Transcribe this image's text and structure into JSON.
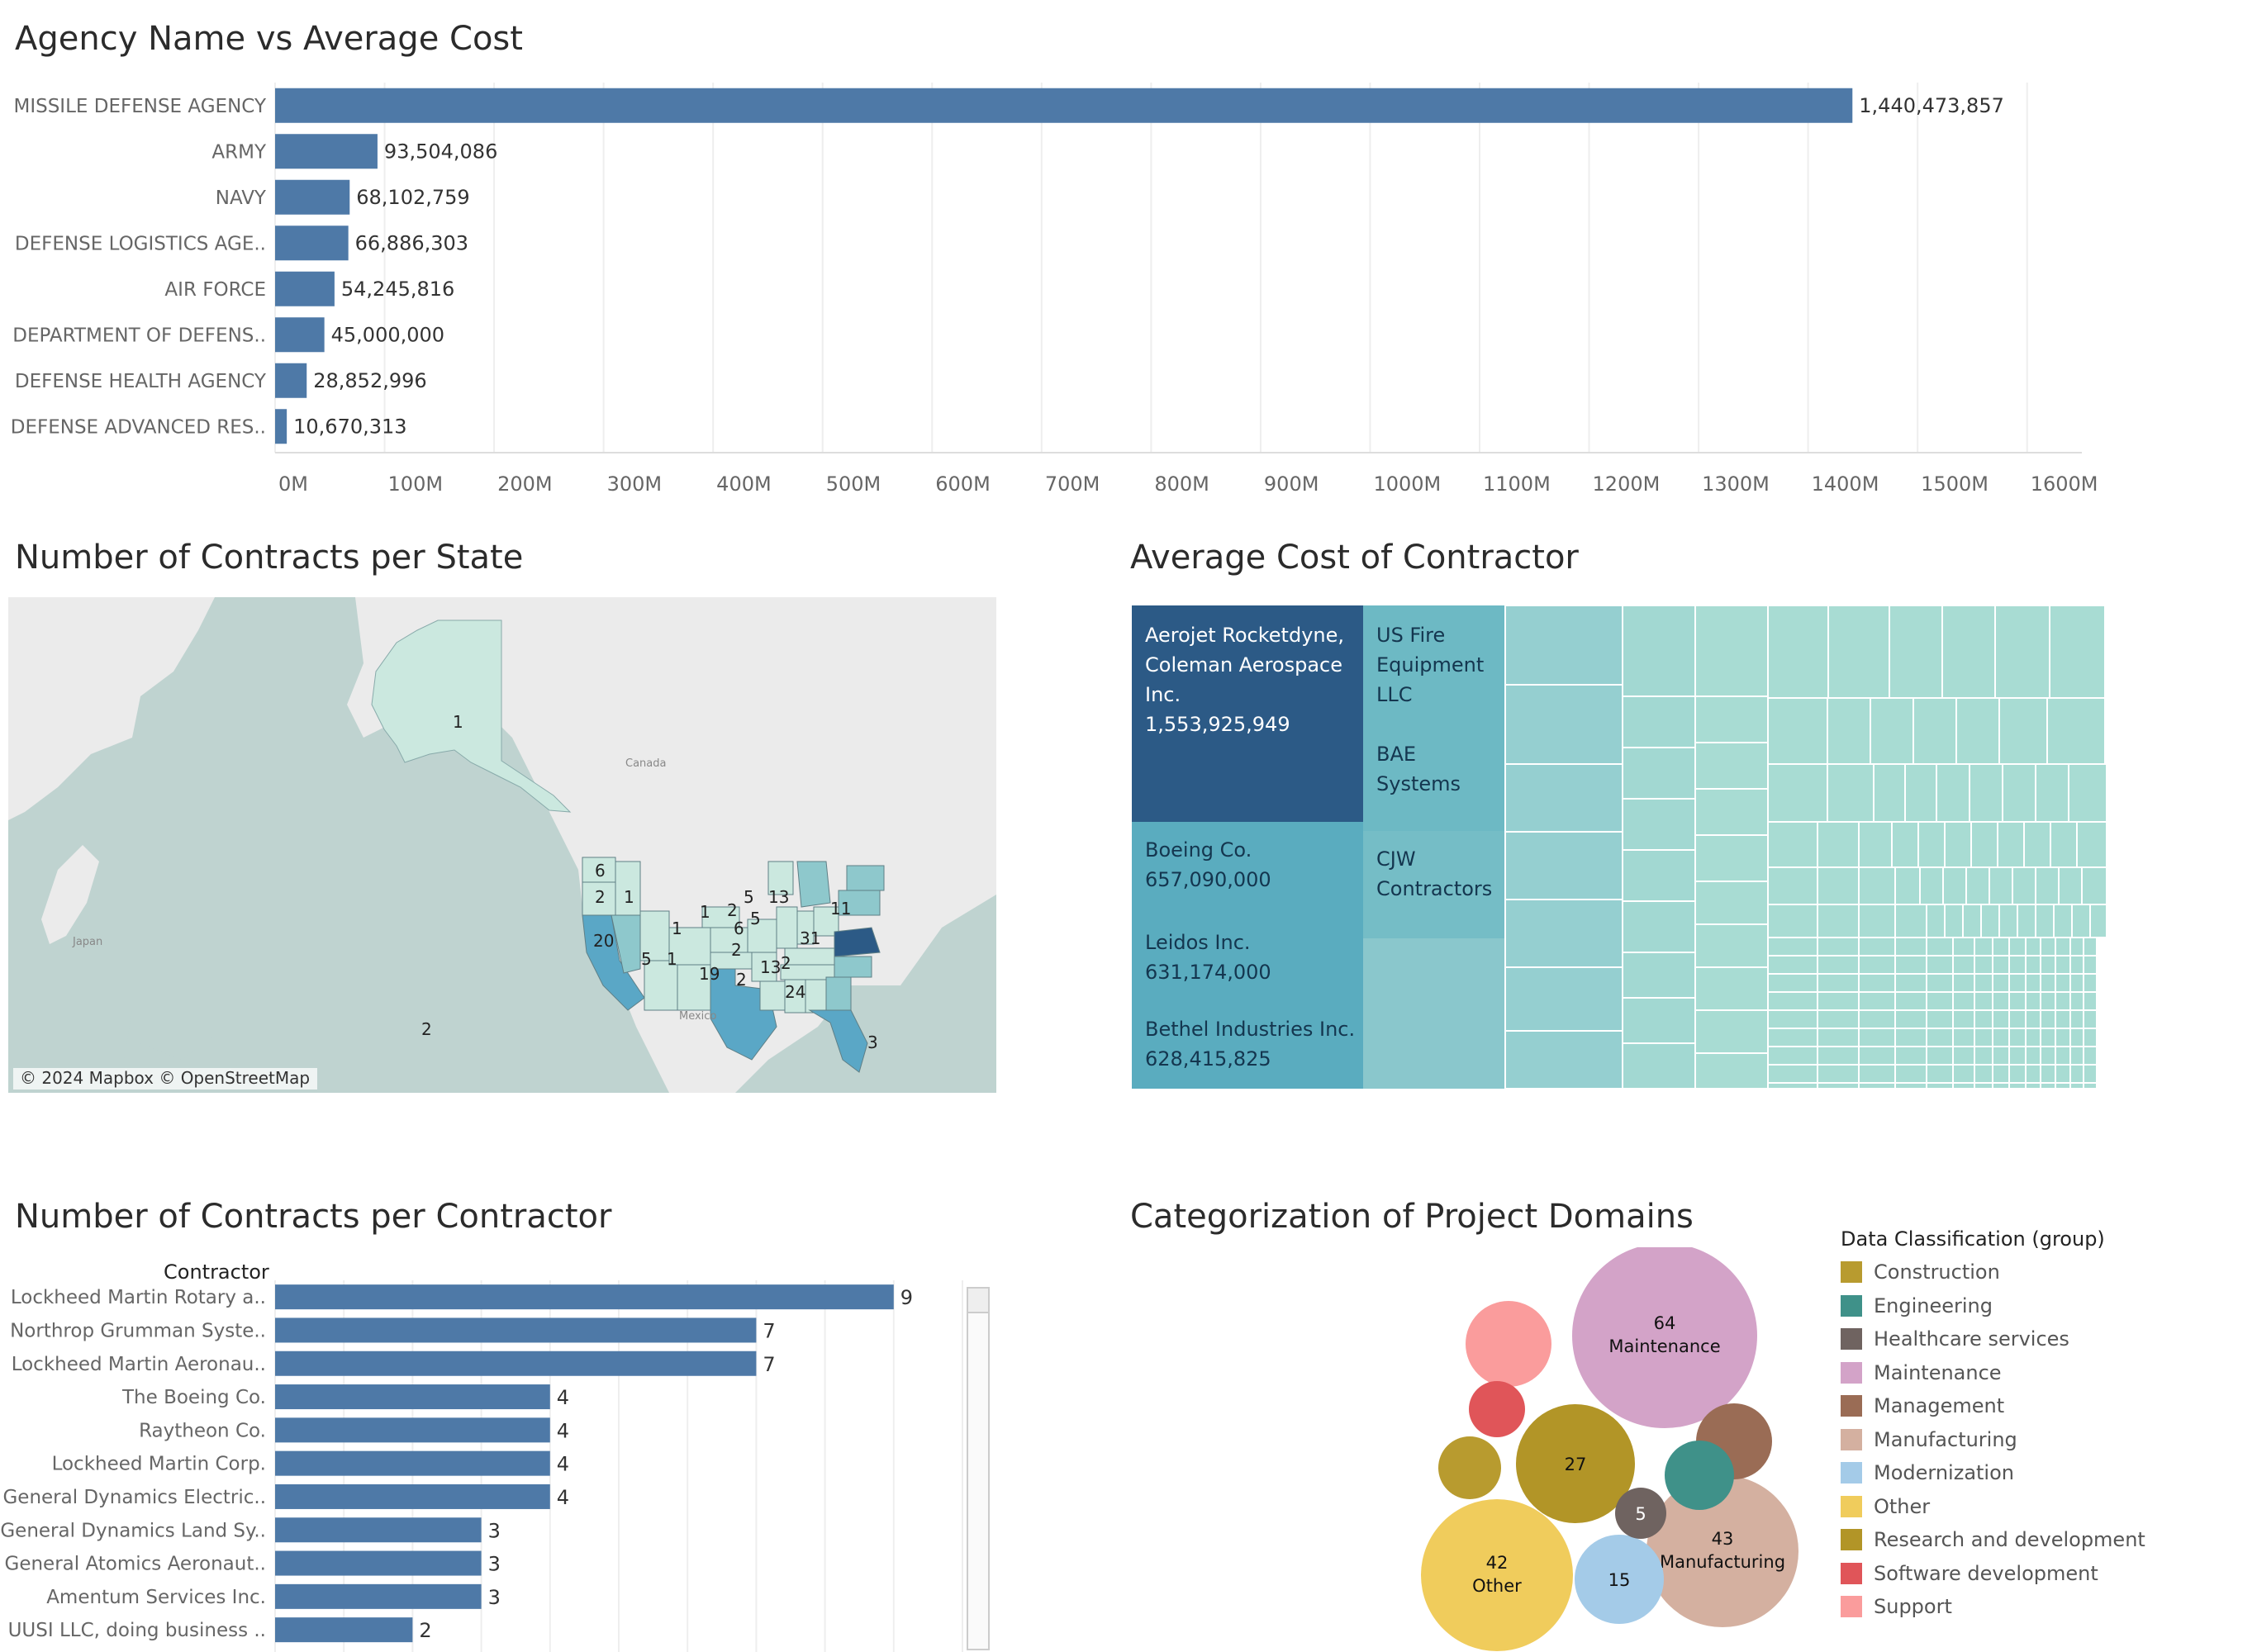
{
  "dashboard": {
    "agency_title": "Agency Name vs Average Cost",
    "state_title": "Number of Contracts per State",
    "contractor_cost_title": "Average Cost of Contractor",
    "contractor_count_title": "Number of Contracts per Contractor",
    "domains_title": "Categorization of Project Domains"
  },
  "colors": {
    "bar": "#4e79a7",
    "treemap_dark": "#2c5a86",
    "treemap_mid": "#5aacbf",
    "treemap_light": "#8ac7cc",
    "treemap_pale": "#a8dcd3"
  },
  "map": {
    "attribution": "© 2024 Mapbox © OpenStreetMap",
    "places": [
      "Canada",
      "Japan",
      "Mexico"
    ],
    "labels": [
      "1",
      "6",
      "2",
      "1",
      "20",
      "5",
      "1",
      "1",
      "1",
      "2",
      "5",
      "2",
      "6",
      "5",
      "13",
      "11",
      "31",
      "19",
      "2",
      "2",
      "13",
      "24",
      "2",
      "3"
    ]
  },
  "treemap": {
    "cells": [
      {
        "lines": [
          "Aerojet Rocketdyne,",
          "Coleman Aerospace",
          "Inc.",
          "1,553,925,949"
        ]
      },
      {
        "lines": [
          "Boeing Co.",
          "657,090,000"
        ]
      },
      {
        "lines": [
          "Leidos Inc.",
          "631,174,000"
        ]
      },
      {
        "lines": [
          "Bethel Industries Inc.",
          "628,415,825"
        ]
      },
      {
        "lines": [
          "US Fire",
          "Equipment",
          "LLC"
        ]
      },
      {
        "lines": [
          "BAE",
          "Systems"
        ]
      },
      {
        "lines": [
          "CJW",
          "Contractors"
        ]
      }
    ]
  },
  "contractor_header": "Contractor",
  "legend": {
    "title": "Data Classification (group)",
    "items": [
      {
        "label": "Construction",
        "color": "#b89b2f"
      },
      {
        "label": "Engineering",
        "color": "#3f9189"
      },
      {
        "label": "Healthcare services",
        "color": "#6f6360"
      },
      {
        "label": "Maintenance",
        "color": "#d3a3c8"
      },
      {
        "label": "Management",
        "color": "#9a6c55"
      },
      {
        "label": "Manufacturing",
        "color": "#d4b0a0"
      },
      {
        "label": "Modernization",
        "color": "#a4cbe8"
      },
      {
        "label": "Other",
        "color": "#f0cc5c"
      },
      {
        "label": "Research and development",
        "color": "#b29527"
      },
      {
        "label": "Software development",
        "color": "#e05559"
      },
      {
        "label": "Support",
        "color": "#fa9c9c"
      }
    ]
  },
  "chart_data": [
    {
      "type": "bar",
      "title": "Agency Name vs Average Cost",
      "orientation": "horizontal",
      "categories": [
        "MISSILE DEFENSE AGENCY",
        "ARMY",
        "NAVY",
        "DEFENSE LOGISTICS AGE..",
        "AIR FORCE",
        "DEPARTMENT OF DEFENS..",
        "DEFENSE HEALTH AGENCY",
        "DEFENSE ADVANCED RES.."
      ],
      "values": [
        1440473857,
        93504086,
        68102759,
        66886303,
        54245816,
        45000000,
        28852996,
        10670313
      ],
      "value_labels": [
        "1,440,473,857",
        "93,504,086",
        "68,102,759",
        "66,886,303",
        "54,245,816",
        "45,000,000",
        "28,852,996",
        "10,670,313"
      ],
      "xlim": [
        0,
        1650000000
      ],
      "tick_labels": [
        "0M",
        "100M",
        "200M",
        "300M",
        "400M",
        "500M",
        "600M",
        "700M",
        "800M",
        "900M",
        "1000M",
        "1100M",
        "1200M",
        "1300M",
        "1400M",
        "1500M",
        "1600M"
      ],
      "grid": true
    },
    {
      "type": "bar",
      "title": "Number of Contracts per Contractor",
      "orientation": "horizontal",
      "categories": [
        "Lockheed Martin Rotary a..",
        "Northrop Grumman Syste..",
        "Lockheed Martin Aeronau..",
        "The Boeing Co.",
        "Raytheon Co.",
        "Lockheed Martin Corp.",
        "General Dynamics Electric..",
        "General Dynamics Land Sy..",
        "General Atomics Aeronaut..",
        "Amentum Services Inc.",
        "UUSI LLC, doing business .."
      ],
      "values": [
        9,
        7,
        7,
        4,
        4,
        4,
        4,
        3,
        3,
        3,
        2
      ],
      "xlim": [
        0,
        10
      ],
      "grid": true
    },
    {
      "type": "bubble",
      "title": "Categorization of Project Domains",
      "bubbles": [
        {
          "category": "Maintenance",
          "value": 64,
          "label": "Maintenance",
          "color": "#d3a3c8"
        },
        {
          "category": "Manufacturing",
          "value": 43,
          "label": "Manufacturing",
          "color": "#d4b0a0"
        },
        {
          "category": "Other",
          "value": 42,
          "label": "Other",
          "color": "#f0cc5c"
        },
        {
          "category": "Research and development",
          "value": 27,
          "label": "",
          "color": "#b29527"
        },
        {
          "category": "Modernization",
          "value": 15,
          "label": "",
          "color": "#a4cbe8"
        },
        {
          "category": "Healthcare services",
          "value": 5,
          "label": "",
          "color": "#6f6360"
        },
        {
          "category": "Support",
          "value": null,
          "label": "",
          "color": "#fa9c9c"
        },
        {
          "category": "Management",
          "value": null,
          "label": "",
          "color": "#9a6c55"
        },
        {
          "category": "Engineering",
          "value": null,
          "label": "",
          "color": "#3f9189"
        },
        {
          "category": "Software development",
          "value": null,
          "label": "",
          "color": "#e05559"
        },
        {
          "category": "Construction",
          "value": null,
          "label": "",
          "color": "#b89b2f"
        }
      ]
    }
  ]
}
